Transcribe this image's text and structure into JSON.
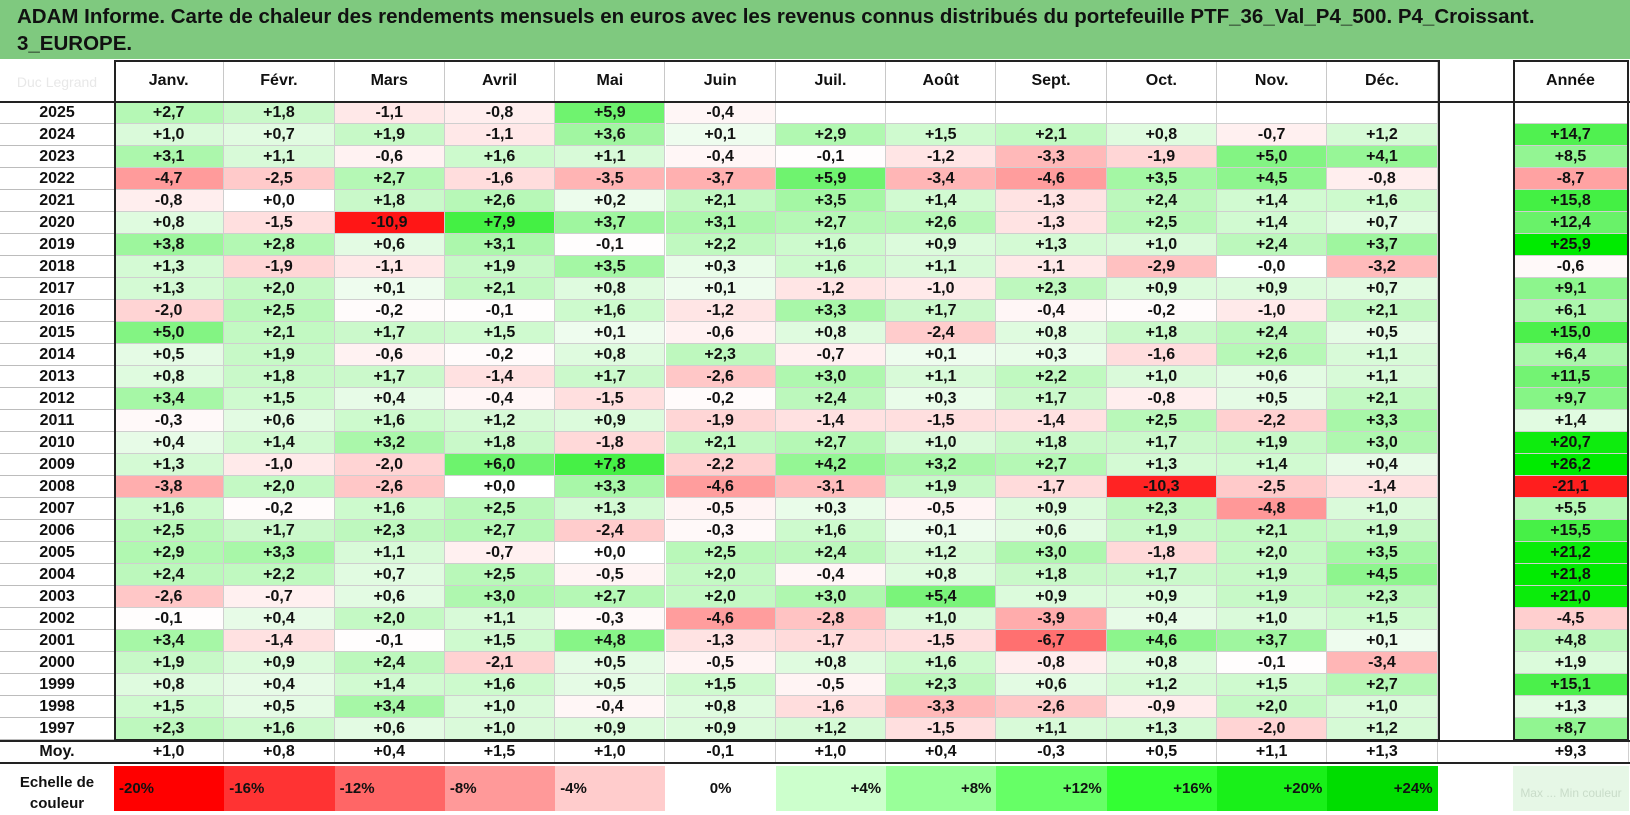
{
  "title": "ADAM Informe. Carte de chaleur des rendements mensuels en euros avec les revenus connus distribués du portefeuille PTF_36_Val_P4_500. P4_Croissant. 3_EUROPE.",
  "corner_label": "Duc Legrand",
  "months": [
    "Janv.",
    "Févr.",
    "Mars",
    "Avril",
    "Mai",
    "Juin",
    "Juil.",
    "Août",
    "Sept.",
    "Oct.",
    "Nov.",
    "Déc."
  ],
  "annual_header": "Année",
  "average_label": "Moy.",
  "legend_label": "Echelle de couleur",
  "legend_ghost": "Max ... Min couleur",
  "legend_steps": [
    {
      "label": "-20%",
      "color": "#ff0000"
    },
    {
      "label": "-16%",
      "color": "#ff3333"
    },
    {
      "label": "-12%",
      "color": "#ff6666"
    },
    {
      "label": "-8%",
      "color": "#ff9999"
    },
    {
      "label": "-4%",
      "color": "#ffcccc"
    },
    {
      "label": "0%",
      "color": "#ffffff"
    },
    {
      "label": "+4%",
      "color": "#ccffcc"
    },
    {
      "label": "+8%",
      "color": "#99ff99"
    },
    {
      "label": "+12%",
      "color": "#66ff66"
    },
    {
      "label": "+16%",
      "color": "#33ff33"
    },
    {
      "label": "+20%",
      "color": "#19f019"
    },
    {
      "label": "+24%",
      "color": "#00dd00"
    },
    {
      "label": "",
      "color": "#e6f7e6"
    }
  ],
  "chart_data": {
    "type": "heatmap",
    "unit": "%",
    "columns": [
      "Janv.",
      "Févr.",
      "Mars",
      "Avril",
      "Mai",
      "Juin",
      "Juil.",
      "Août",
      "Sept.",
      "Oct.",
      "Nov.",
      "Déc.",
      "Année"
    ],
    "rows": [
      {
        "year": "2025",
        "monthly": [
          "+2,7",
          "+1,8",
          "-1,1",
          "-0,8",
          "+5,9",
          "-0,4",
          "",
          "",
          "",
          "",
          "",
          ""
        ],
        "annual": ""
      },
      {
        "year": "2024",
        "monthly": [
          "+1,0",
          "+0,7",
          "+1,9",
          "-1,1",
          "+3,6",
          "+0,1",
          "+2,9",
          "+1,5",
          "+2,1",
          "+0,8",
          "-0,7",
          "+1,2"
        ],
        "annual": "+14,7"
      },
      {
        "year": "2023",
        "monthly": [
          "+3,1",
          "+1,1",
          "-0,6",
          "+1,6",
          "+1,1",
          "-0,4",
          "-0,1",
          "-1,2",
          "-3,3",
          "-1,9",
          "+5,0",
          "+4,1"
        ],
        "annual": "+8,5"
      },
      {
        "year": "2022",
        "monthly": [
          "-4,7",
          "-2,5",
          "+2,7",
          "-1,6",
          "-3,5",
          "-3,7",
          "+5,9",
          "-3,4",
          "-4,6",
          "+3,5",
          "+4,5",
          "-0,8"
        ],
        "annual": "-8,7"
      },
      {
        "year": "2021",
        "monthly": [
          "-0,8",
          "+0,0",
          "+1,8",
          "+2,6",
          "+0,2",
          "+2,1",
          "+3,5",
          "+1,4",
          "-1,3",
          "+2,4",
          "+1,4",
          "+1,6"
        ],
        "annual": "+15,8"
      },
      {
        "year": "2020",
        "monthly": [
          "+0,8",
          "-1,5",
          "-10,9",
          "+7,9",
          "+3,7",
          "+3,1",
          "+2,7",
          "+2,6",
          "-1,3",
          "+2,5",
          "+1,4",
          "+0,7"
        ],
        "annual": "+12,4"
      },
      {
        "year": "2019",
        "monthly": [
          "+3,8",
          "+2,8",
          "+0,6",
          "+3,1",
          "-0,1",
          "+2,2",
          "+1,6",
          "+0,9",
          "+1,3",
          "+1,0",
          "+2,4",
          "+3,7"
        ],
        "annual": "+25,9"
      },
      {
        "year": "2018",
        "monthly": [
          "+1,3",
          "-1,9",
          "-1,1",
          "+1,9",
          "+3,5",
          "+0,3",
          "+1,6",
          "+1,1",
          "-1,1",
          "-2,9",
          "-0,0",
          "-3,2"
        ],
        "annual": "-0,6"
      },
      {
        "year": "2017",
        "monthly": [
          "+1,3",
          "+2,0",
          "+0,1",
          "+2,1",
          "+0,8",
          "+0,1",
          "-1,2",
          "-1,0",
          "+2,3",
          "+0,9",
          "+0,9",
          "+0,7"
        ],
        "annual": "+9,1"
      },
      {
        "year": "2016",
        "monthly": [
          "-2,0",
          "+2,5",
          "-0,2",
          "-0,1",
          "+1,6",
          "-1,2",
          "+3,3",
          "+1,7",
          "-0,4",
          "-0,2",
          "-1,0",
          "+2,1"
        ],
        "annual": "+6,1"
      },
      {
        "year": "2015",
        "monthly": [
          "+5,0",
          "+2,1",
          "+1,7",
          "+1,5",
          "+0,1",
          "-0,6",
          "+0,8",
          "-2,4",
          "+0,8",
          "+1,8",
          "+2,4",
          "+0,5"
        ],
        "annual": "+15,0"
      },
      {
        "year": "2014",
        "monthly": [
          "+0,5",
          "+1,9",
          "-0,6",
          "-0,2",
          "+0,8",
          "+2,3",
          "-0,7",
          "+0,1",
          "+0,3",
          "-1,6",
          "+2,6",
          "+1,1"
        ],
        "annual": "+6,4"
      },
      {
        "year": "2013",
        "monthly": [
          "+0,8",
          "+1,8",
          "+1,7",
          "-1,4",
          "+1,7",
          "-2,6",
          "+3,0",
          "+1,1",
          "+2,2",
          "+1,0",
          "+0,6",
          "+1,1"
        ],
        "annual": "+11,5"
      },
      {
        "year": "2012",
        "monthly": [
          "+3,4",
          "+1,5",
          "+0,4",
          "-0,4",
          "-1,5",
          "-0,2",
          "+2,4",
          "+0,3",
          "+1,7",
          "-0,8",
          "+0,5",
          "+2,1"
        ],
        "annual": "+9,7"
      },
      {
        "year": "2011",
        "monthly": [
          "-0,3",
          "+0,6",
          "+1,6",
          "+1,2",
          "+0,9",
          "-1,9",
          "-1,4",
          "-1,5",
          "-1,4",
          "+2,5",
          "-2,2",
          "+3,3"
        ],
        "annual": "+1,4"
      },
      {
        "year": "2010",
        "monthly": [
          "+0,4",
          "+1,4",
          "+3,2",
          "+1,8",
          "-1,8",
          "+2,1",
          "+2,7",
          "+1,0",
          "+1,8",
          "+1,7",
          "+1,9",
          "+3,0"
        ],
        "annual": "+20,7"
      },
      {
        "year": "2009",
        "monthly": [
          "+1,3",
          "-1,0",
          "-2,0",
          "+6,0",
          "+7,8",
          "-2,2",
          "+4,2",
          "+3,2",
          "+2,7",
          "+1,3",
          "+1,4",
          "+0,4"
        ],
        "annual": "+26,2"
      },
      {
        "year": "2008",
        "monthly": [
          "-3,8",
          "+2,0",
          "-2,6",
          "+0,0",
          "+3,3",
          "-4,6",
          "-3,1",
          "+1,9",
          "-1,7",
          "-10,3",
          "-2,5",
          "-1,4"
        ],
        "annual": "-21,1"
      },
      {
        "year": "2007",
        "monthly": [
          "+1,6",
          "-0,2",
          "+1,6",
          "+2,5",
          "+1,3",
          "-0,5",
          "+0,3",
          "-0,5",
          "+0,9",
          "+2,3",
          "-4,8",
          "+1,0"
        ],
        "annual": "+5,5"
      },
      {
        "year": "2006",
        "monthly": [
          "+2,5",
          "+1,7",
          "+2,3",
          "+2,7",
          "-2,4",
          "-0,3",
          "+1,6",
          "+0,1",
          "+0,6",
          "+1,9",
          "+2,1",
          "+1,9"
        ],
        "annual": "+15,5"
      },
      {
        "year": "2005",
        "monthly": [
          "+2,9",
          "+3,3",
          "+1,1",
          "-0,7",
          "+0,0",
          "+2,5",
          "+2,4",
          "+1,2",
          "+3,0",
          "-1,8",
          "+2,0",
          "+3,5"
        ],
        "annual": "+21,2"
      },
      {
        "year": "2004",
        "monthly": [
          "+2,4",
          "+2,2",
          "+0,7",
          "+2,5",
          "-0,5",
          "+2,0",
          "-0,4",
          "+0,8",
          "+1,8",
          "+1,7",
          "+1,9",
          "+4,5"
        ],
        "annual": "+21,8"
      },
      {
        "year": "2003",
        "monthly": [
          "-2,6",
          "-0,7",
          "+0,6",
          "+3,0",
          "+2,7",
          "+2,0",
          "+3,0",
          "+5,4",
          "+0,9",
          "+0,9",
          "+1,9",
          "+2,3"
        ],
        "annual": "+21,0"
      },
      {
        "year": "2002",
        "monthly": [
          "-0,1",
          "+0,4",
          "+2,0",
          "+1,1",
          "-0,3",
          "-4,6",
          "-2,8",
          "+1,0",
          "-3,9",
          "+0,4",
          "+1,0",
          "+1,5"
        ],
        "annual": "-4,5"
      },
      {
        "year": "2001",
        "monthly": [
          "+3,4",
          "-1,4",
          "-0,1",
          "+1,5",
          "+4,8",
          "-1,3",
          "-1,7",
          "-1,5",
          "-6,7",
          "+4,6",
          "+3,7",
          "+0,1"
        ],
        "annual": "+4,8"
      },
      {
        "year": "2000",
        "monthly": [
          "+1,9",
          "+0,9",
          "+2,4",
          "-2,1",
          "+0,5",
          "-0,5",
          "+0,8",
          "+1,6",
          "-0,8",
          "+0,8",
          "-0,1",
          "-3,4"
        ],
        "annual": "+1,9"
      },
      {
        "year": "1999",
        "monthly": [
          "+0,8",
          "+0,4",
          "+1,4",
          "+1,6",
          "+0,5",
          "+1,5",
          "-0,5",
          "+2,3",
          "+0,6",
          "+1,2",
          "+1,5",
          "+2,7"
        ],
        "annual": "+15,1"
      },
      {
        "year": "1998",
        "monthly": [
          "+1,5",
          "+0,5",
          "+3,4",
          "+1,0",
          "-0,4",
          "+0,8",
          "-1,6",
          "-3,3",
          "-2,6",
          "-0,9",
          "+2,0",
          "+1,0"
        ],
        "annual": "+1,3"
      },
      {
        "year": "1997",
        "monthly": [
          "+2,3",
          "+1,6",
          "+0,6",
          "+1,0",
          "+0,9",
          "+0,9",
          "+1,2",
          "-1,5",
          "+1,1",
          "+1,3",
          "-2,0",
          "+1,2"
        ],
        "annual": "+8,7"
      }
    ],
    "average": {
      "monthly": [
        "+1,0",
        "+0,8",
        "+0,4",
        "+1,5",
        "+1,0",
        "-0,1",
        "+1,0",
        "+0,4",
        "-0,3",
        "+0,5",
        "+1,1",
        "+1,3"
      ],
      "annual": "+9,3"
    },
    "color_scale": {
      "min": -20,
      "max": 24,
      "neutral": 0
    }
  }
}
